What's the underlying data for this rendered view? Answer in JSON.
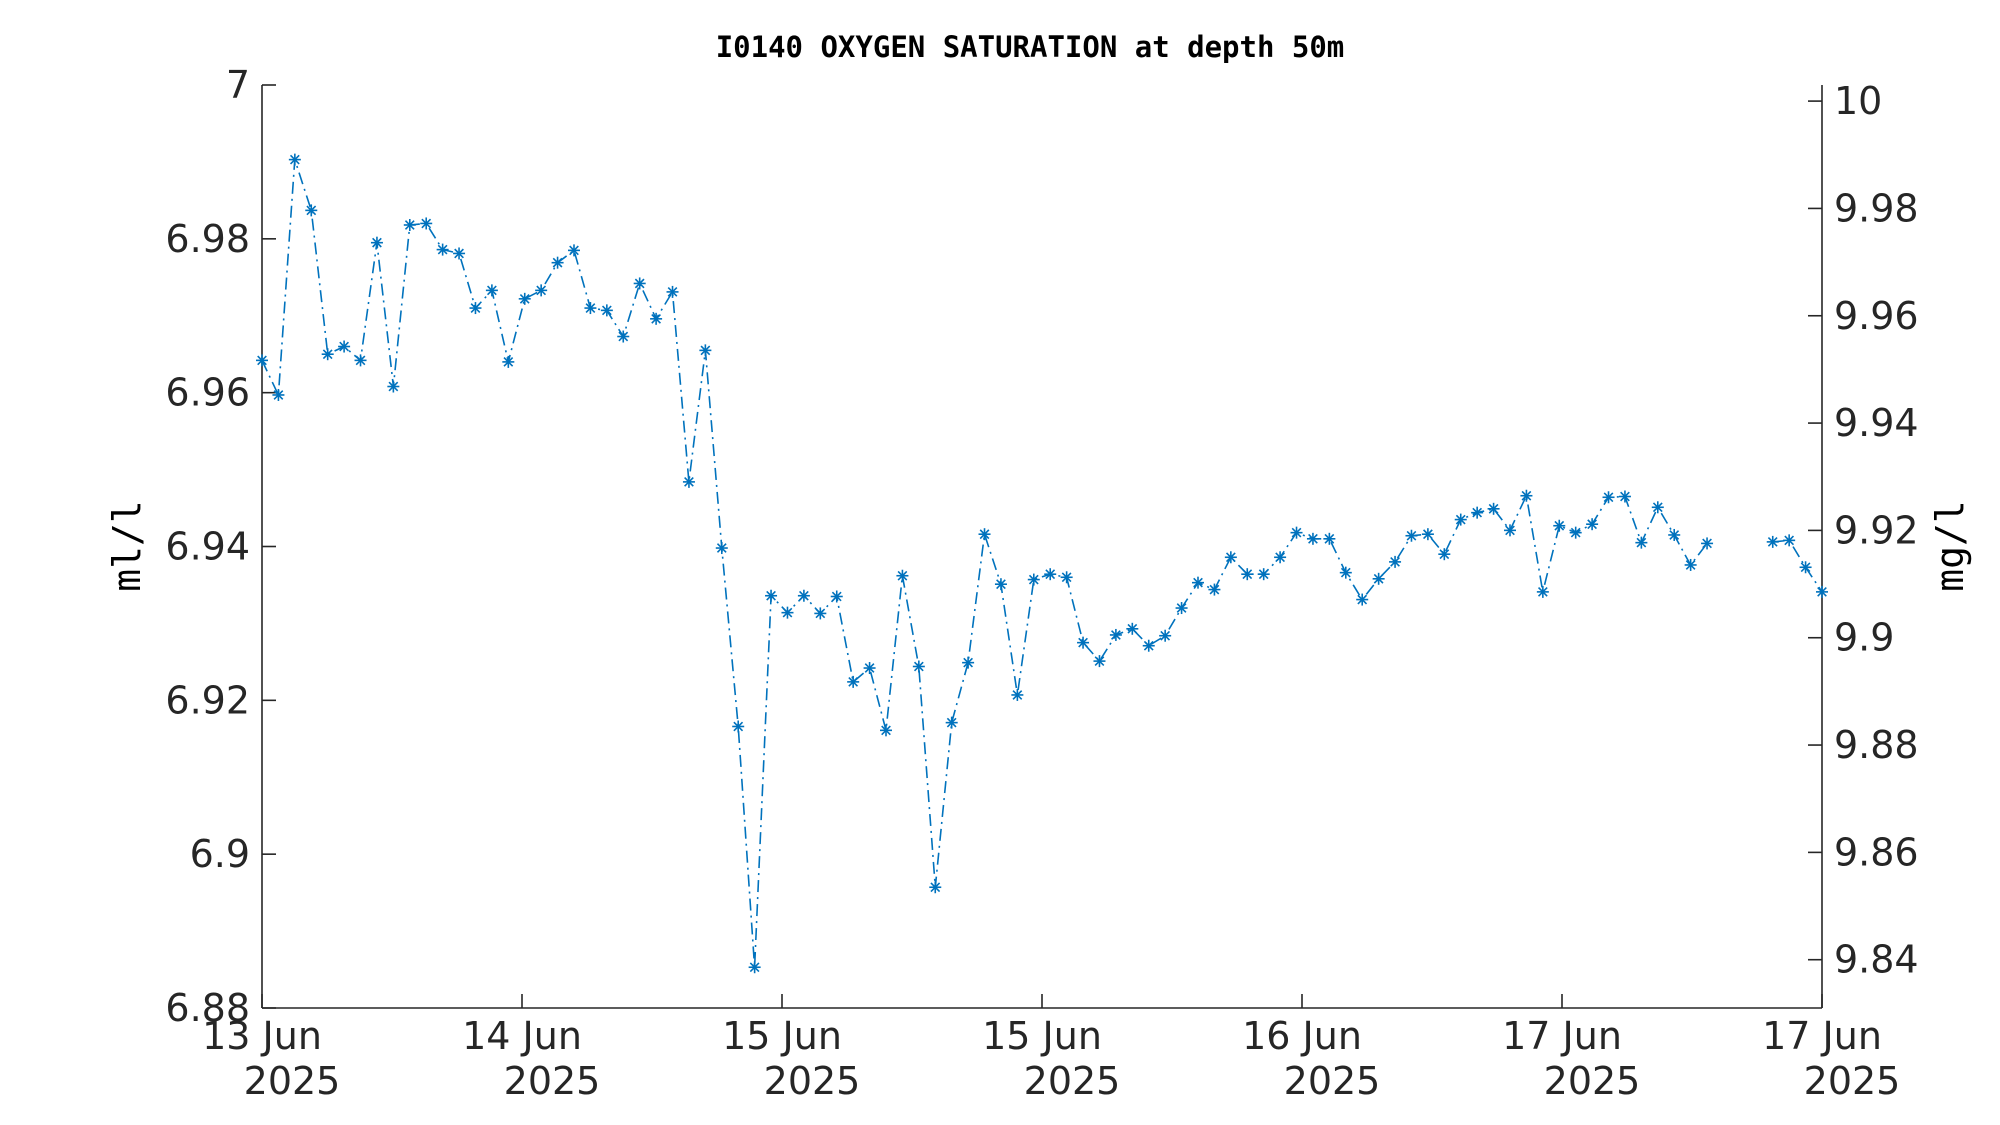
{
  "chart_data": {
    "type": "line",
    "title": "I0140 OXYGEN SATURATION at depth 50m",
    "ylabel": "ml/l",
    "ylabel_right": "mg/l",
    "xlabel": "",
    "ylim": [
      6.88,
      7.0
    ],
    "ylim_right": [
      9.831,
      10.003
    ],
    "yticks": [
      "6.88",
      "6.9",
      "6.92",
      "6.94",
      "6.96",
      "6.98",
      "7"
    ],
    "yticks_right": [
      "9.84",
      "9.86",
      "9.88",
      "9.9",
      "9.92",
      "9.94",
      "9.96",
      "9.98",
      "10"
    ],
    "x_tick_labels": [
      {
        "top": "13 Jun",
        "bottom": "2025"
      },
      {
        "top": "14 Jun",
        "bottom": "2025"
      },
      {
        "top": "15 Jun",
        "bottom": "2025"
      },
      {
        "top": "15 Jun",
        "bottom": "2025"
      },
      {
        "top": "16 Jun",
        "bottom": "2025"
      },
      {
        "top": "17 Jun",
        "bottom": "2025"
      },
      {
        "top": "17 Jun",
        "bottom": "2025"
      }
    ],
    "grid": false,
    "marker": "asterisk",
    "line_style": "dash-dot",
    "series_color": "#0072BD",
    "series": [
      {
        "values": [
          6.9642,
          6.9597,
          6.9903,
          6.9837,
          6.965,
          6.966,
          6.9642,
          6.9795,
          6.9608,
          6.9818,
          6.982,
          6.9786,
          6.9781,
          6.971,
          6.9733,
          6.964,
          6.9722,
          6.9733,
          6.9769,
          6.9785,
          6.971,
          6.9707,
          6.9673,
          6.9742,
          6.9696,
          6.9731,
          6.9484,
          6.9655,
          6.9398,
          6.9166,
          6.8853,
          6.9336,
          6.9314,
          6.9336,
          6.9313,
          6.9335,
          6.9224,
          6.9242,
          6.9161,
          6.9362,
          6.9244,
          6.8957,
          6.9171,
          6.9249,
          6.9416,
          6.9351,
          6.9207,
          6.9357,
          6.9364,
          6.936,
          6.9275,
          6.9251,
          6.9285,
          6.9293,
          6.9271,
          6.9284,
          6.932,
          6.9353,
          6.9344,
          6.9386,
          6.9364,
          6.9364,
          6.9386,
          6.9418,
          6.941,
          6.941,
          6.9366,
          6.9331,
          6.9358,
          6.938,
          6.9414,
          6.9416,
          6.939,
          6.9435,
          6.9444,
          6.9449,
          6.9421,
          6.9466,
          6.9341,
          6.9427,
          6.9418,
          6.9429,
          6.9464,
          6.9465,
          6.9405,
          6.9451,
          6.9415,
          6.9376,
          6.9404,
          null,
          null,
          null,
          6.9406,
          6.9408,
          6.9373,
          6.9341
        ]
      }
    ]
  }
}
